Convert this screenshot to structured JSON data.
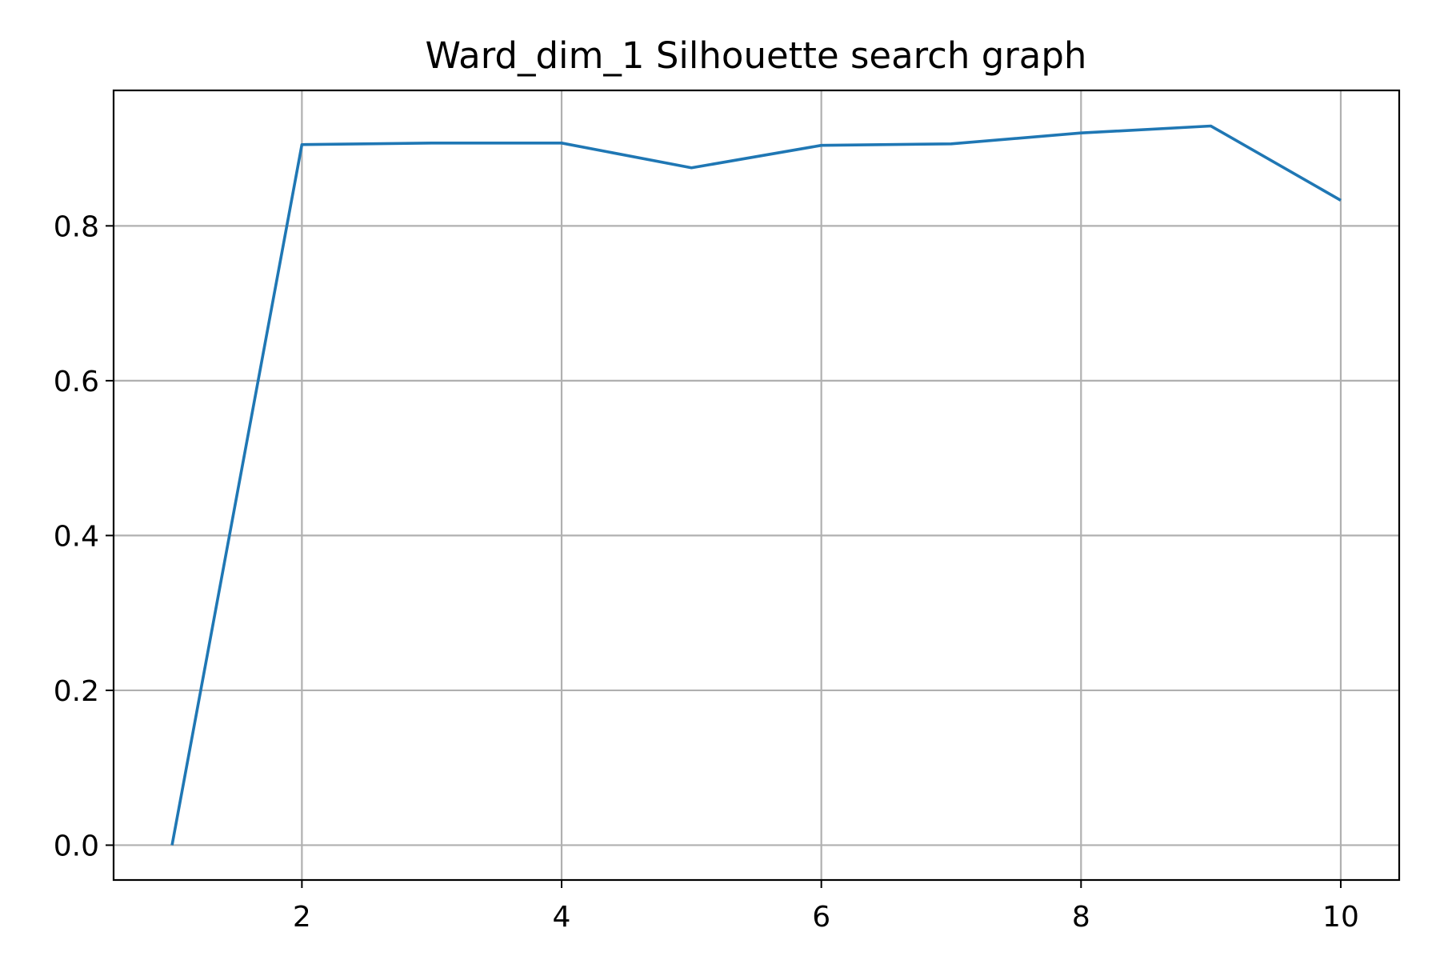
{
  "chart_data": {
    "type": "line",
    "title": "Ward_dim_1 Silhouette search graph",
    "xlabel": "",
    "ylabel": "",
    "xlim": [
      0.55,
      10.45
    ],
    "ylim": [
      -0.045,
      0.975
    ],
    "xticks": [
      2,
      4,
      6,
      8,
      10
    ],
    "xtick_labels": [
      "2",
      "4",
      "6",
      "8",
      "10"
    ],
    "yticks": [
      0.0,
      0.2,
      0.4,
      0.6,
      0.8
    ],
    "ytick_labels": [
      "0.0",
      "0.2",
      "0.4",
      "0.6",
      "0.8"
    ],
    "grid": true,
    "series": [
      {
        "name": "silhouette",
        "color": "#1f77b4",
        "x": [
          1,
          2,
          3,
          4,
          5,
          6,
          7,
          8,
          9,
          10
        ],
        "y": [
          0.0,
          0.905,
          0.907,
          0.907,
          0.875,
          0.904,
          0.906,
          0.92,
          0.929,
          0.833
        ]
      }
    ]
  }
}
